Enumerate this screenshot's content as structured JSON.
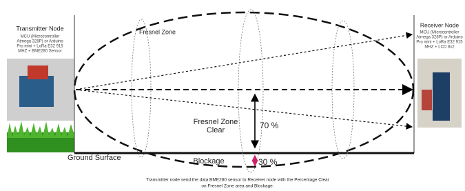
{
  "transmitter": {
    "title": "Transmitter Node",
    "details": [
      "MCU (Microcontroller",
      "Atmega 328P) or Arduino",
      "Pro mini + LoRa E32 915",
      "MHZ + BME280 Sensor"
    ]
  },
  "receiver": {
    "title": "Receiver Node",
    "details": [
      "MCU (Microcontroller",
      "Atmega 328P) or Arduino",
      "Pro mini + LoRa E32 915",
      "MHZ + LCD 8x2"
    ]
  },
  "fresnel_zone": "Fresnel Zone",
  "clear": {
    "label": [
      "Fresnel Zone",
      "Clear"
    ],
    "percent": "70 %"
  },
  "blockage": {
    "label": "Blockage",
    "percent": "30 %"
  },
  "ground": "Ground Surface",
  "caption": [
    "Transmitter node send the data BME280 sensor to Receiver node with the Percentage Clear",
    "on Fresnel Zone area and Blockage."
  ]
}
